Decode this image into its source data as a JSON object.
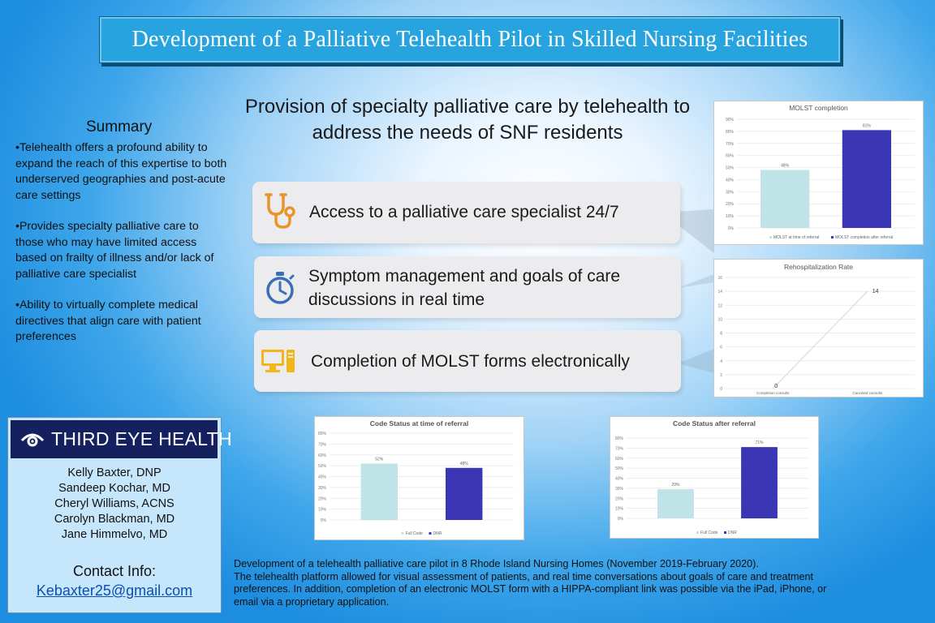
{
  "title": "Development of a Palliative Telehealth Pilot in Skilled Nursing Facilities",
  "subtitle": "Provision of specialty palliative care by telehealth to address the needs of SNF residents",
  "summary": {
    "heading": "Summary",
    "bullets": [
      "•Telehealth offers a profound ability to expand the reach of this expertise to both underserved geographies and post-acute care settings",
      "•Provides specialty palliative care to those who may have limited access based on frailty of illness and/or lack of palliative care specialist",
      "•Ability to virtually complete medical directives that align care with patient preferences"
    ]
  },
  "features": [
    {
      "text": "Access to a palliative care specialist 24/7",
      "icon": "stethoscope-icon"
    },
    {
      "text": "Symptom management and goals of care discussions in real time",
      "icon": "stopwatch-icon"
    },
    {
      "text": "Completion of MOLST forms  electronically",
      "icon": "computer-icon"
    }
  ],
  "logo": {
    "text": "THIRD EYE HEALTH",
    "icon": "eye-icon"
  },
  "authors": [
    "Kelly Baxter, DNP",
    "Sandeep Kochar, MD",
    "Cheryl Williams, ACNS",
    "Carolyn Blackman, MD",
    "Jane Himmelvo, MD"
  ],
  "contact": {
    "label": "Contact Info:",
    "email": "Kebaxter25@gmail.com"
  },
  "description": [
    "Development of a telehealth palliative care pilot in 8 Rhode Island Nursing Homes (November 2019-February 2020).",
    "The telehealth platform allowed for visual assessment of patients, and real time conversations about goals of care and treatment preferences. In addition, completion of an electronic MOLST form with a HIPPA-compliant link was possible via the iPad, iPhone, or email via a proprietary application."
  ],
  "colors": {
    "light_bar": "#bfe3e6",
    "dark_bar": "#3a36b4",
    "banner": "#27a4e0",
    "logo_bg": "#15215e",
    "line": "#cfe3ea"
  },
  "chart_data": [
    {
      "id": "molst",
      "type": "bar",
      "title": "MOLST completion",
      "categories": [
        "MOLST at time of referral",
        "MOLST completion after referral"
      ],
      "values": [
        48,
        81
      ],
      "labels": [
        "48%",
        "81%"
      ],
      "ylim": [
        0,
        90
      ],
      "ticks": [
        "0%",
        "10%",
        "20%",
        "30%",
        "40%",
        "50%",
        "60%",
        "70%",
        "80%",
        "90%"
      ],
      "legend": [
        "MOLST at time of referral",
        "MOLST completion after referral"
      ],
      "grid": true
    },
    {
      "id": "rehosp",
      "type": "line",
      "title": "Rehospitalization Rate",
      "categories": [
        "Completion consults",
        "Canceled consults"
      ],
      "values": [
        0,
        14
      ],
      "labels": [
        "0",
        "14"
      ],
      "ylim": [
        0,
        16
      ],
      "ticks": [
        "0",
        "2",
        "4",
        "6",
        "8",
        "10",
        "12",
        "14",
        "16"
      ],
      "grid": true
    },
    {
      "id": "code-referral",
      "type": "bar",
      "title": "Code Status at time of referral",
      "categories": [
        "Full Code",
        "DNR"
      ],
      "values": [
        52,
        48
      ],
      "labels": [
        "52%",
        "48%"
      ],
      "ylim": [
        0,
        80
      ],
      "ticks": [
        "0%",
        "10%",
        "20%",
        "30%",
        "40%",
        "50%",
        "60%",
        "70%",
        "80%"
      ],
      "legend": [
        "Full Code",
        "DNR"
      ],
      "grid": true
    },
    {
      "id": "code-after",
      "type": "bar",
      "title": "Code Status after referral",
      "categories": [
        "Full Code",
        "DNR"
      ],
      "values": [
        29,
        71
      ],
      "labels": [
        "29%",
        "71%"
      ],
      "ylim": [
        0,
        80
      ],
      "ticks": [
        "0%",
        "10%",
        "20%",
        "30%",
        "40%",
        "50%",
        "60%",
        "70%",
        "80%"
      ],
      "legend": [
        "Full Code",
        "DNR"
      ],
      "grid": true
    }
  ]
}
